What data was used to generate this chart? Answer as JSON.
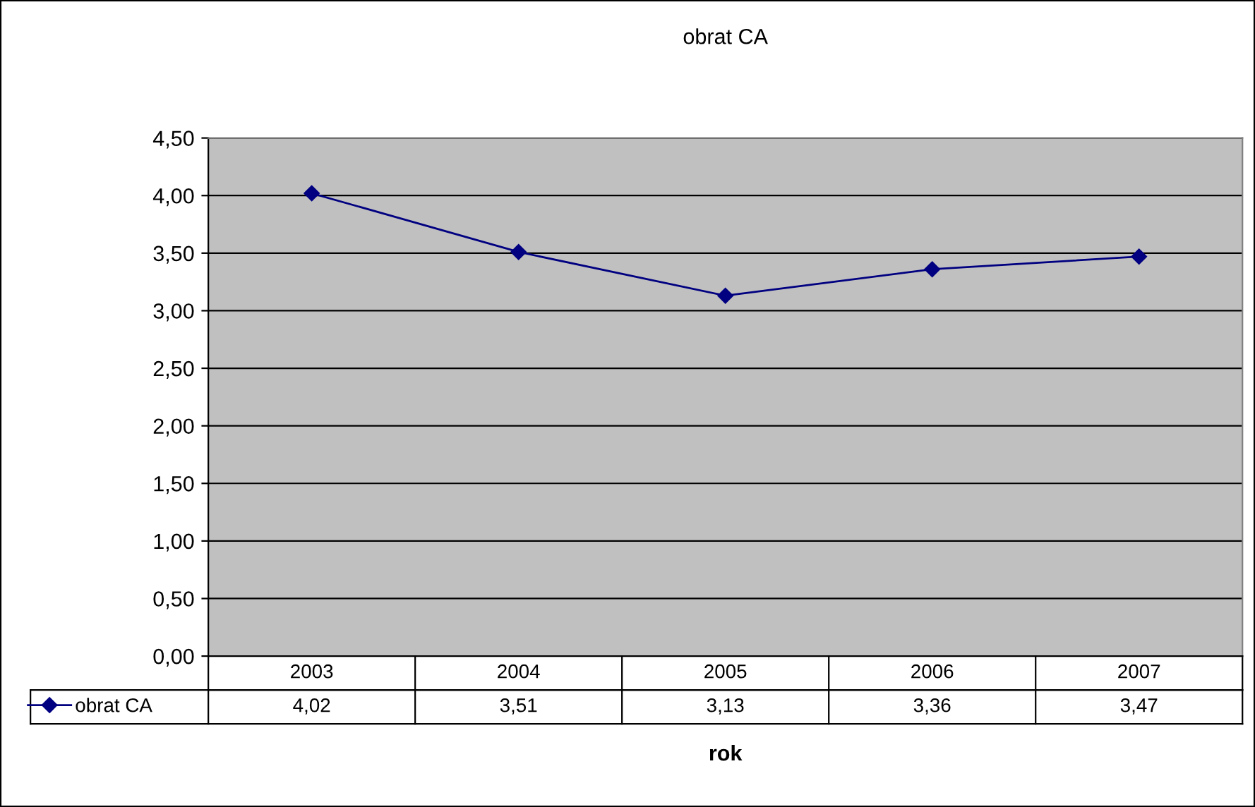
{
  "chart_data": {
    "type": "line",
    "title": "obrat CA",
    "xlabel": "rok",
    "categories": [
      "2003",
      "2004",
      "2005",
      "2006",
      "2007"
    ],
    "series": [
      {
        "name": "obrat CA",
        "color": "#000080",
        "values": [
          4.02,
          3.51,
          3.13,
          3.36,
          3.47
        ],
        "value_labels": [
          "4,02",
          "3,51",
          "3,13",
          "3,36",
          "3,47"
        ]
      }
    ],
    "ylim": [
      0,
      4.5
    ],
    "yticks": [
      {
        "value": 0,
        "label": "0,00"
      },
      {
        "value": 0.5,
        "label": "0,50"
      },
      {
        "value": 1,
        "label": "1,00"
      },
      {
        "value": 1.5,
        "label": "1,50"
      },
      {
        "value": 2,
        "label": "2,00"
      },
      {
        "value": 2.5,
        "label": "2,50"
      },
      {
        "value": 3,
        "label": "3,00"
      },
      {
        "value": 3.5,
        "label": "3,50"
      },
      {
        "value": 4,
        "label": "4,00"
      },
      {
        "value": 4.5,
        "label": "4,50"
      }
    ],
    "grid": "y",
    "legend": "bottom",
    "marker": "diamond",
    "line_style": "solid"
  }
}
